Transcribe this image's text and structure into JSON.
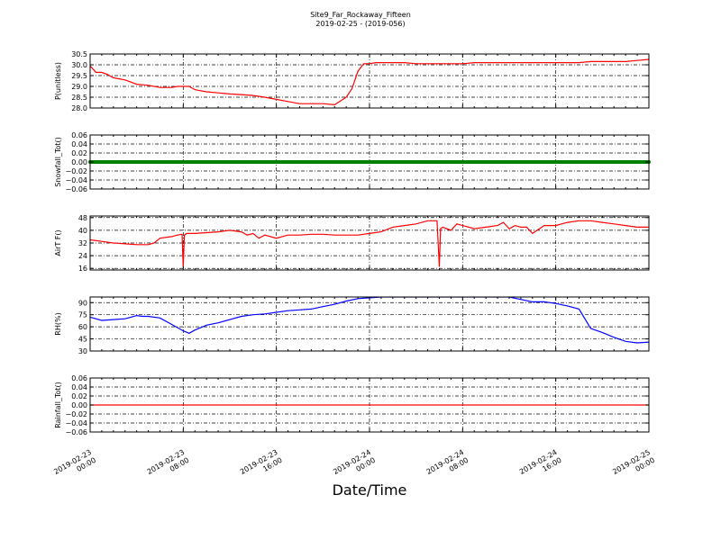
{
  "chart_data": {
    "type": "line",
    "title": "Site9_Far_Rockaway_Fifteen",
    "subtitle": "2019-02-25 - (2019-056)",
    "xlabel": "Date/Time",
    "x_ticks": [
      [
        "2019-02-23",
        "00:00"
      ],
      [
        "2019-02-23",
        "08:00"
      ],
      [
        "2019-02-23",
        "16:00"
      ],
      [
        "2019-02-24",
        "00:00"
      ],
      [
        "2019-02-24",
        "08:00"
      ],
      [
        "2019-02-24",
        "16:00"
      ],
      [
        "2019-02-25",
        "00:00"
      ]
    ],
    "xlim": [
      0,
      48
    ],
    "grid": true,
    "panels": [
      {
        "ylabel": "P(unitless)",
        "ylim": [
          28.0,
          30.5
        ],
        "yticks": [
          "28.0",
          "28.5",
          "29.0",
          "29.5",
          "30.0",
          "30.5"
        ],
        "ytick_values": [
          28.0,
          28.5,
          29.0,
          29.5,
          30.0,
          30.5
        ],
        "color": "#ff0000",
        "x": [
          0,
          0.5,
          1,
          1.5,
          2,
          2.5,
          3,
          3.5,
          4,
          5,
          6,
          7,
          7.5,
          8,
          8.5,
          9,
          9.5,
          10,
          11,
          12,
          13,
          14,
          15,
          16,
          17,
          18,
          19,
          20,
          21,
          22,
          22.5,
          23,
          23.5,
          24,
          24.5,
          25,
          26,
          27,
          28,
          29,
          30,
          31,
          32,
          33,
          34,
          35,
          36,
          37,
          38,
          39,
          40,
          41,
          42,
          43,
          44,
          45,
          46,
          47,
          48
        ],
        "y": [
          29.95,
          29.65,
          29.65,
          29.55,
          29.4,
          29.35,
          29.3,
          29.2,
          29.1,
          29.05,
          28.95,
          28.95,
          29.0,
          29.0,
          29.0,
          28.85,
          28.8,
          28.75,
          28.7,
          28.65,
          28.62,
          28.58,
          28.5,
          28.4,
          28.3,
          28.2,
          28.2,
          28.2,
          28.15,
          28.5,
          28.9,
          29.7,
          30.05,
          30.05,
          30.1,
          30.1,
          30.1,
          30.1,
          30.05,
          30.05,
          30.05,
          30.05,
          30.05,
          30.1,
          30.1,
          30.1,
          30.1,
          30.1,
          30.1,
          30.1,
          30.1,
          30.1,
          30.1,
          30.15,
          30.15,
          30.15,
          30.15,
          30.2,
          30.25
        ]
      },
      {
        "ylabel": "Snowfall_Tot()",
        "ylim": [
          -0.06,
          0.06
        ],
        "yticks": [
          "−0.06",
          "−0.04",
          "−0.02",
          "0.00",
          "0.02",
          "0.04",
          "0.06"
        ],
        "ytick_values": [
          -0.06,
          -0.04,
          -0.02,
          0.0,
          0.02,
          0.04,
          0.06
        ],
        "color": "#008000",
        "markers": true,
        "x": [
          0,
          48
        ],
        "y": [
          0.0,
          0.0
        ]
      },
      {
        "ylabel": "AirT F()",
        "ylim": [
          15,
          49
        ],
        "yticks": [
          "16",
          "24",
          "32",
          "40",
          "48"
        ],
        "ytick_values": [
          16,
          24,
          32,
          40,
          48
        ],
        "color": "#ff0000",
        "x": [
          0,
          1,
          2,
          3,
          4,
          5,
          5.5,
          6,
          7,
          7.5,
          7.9,
          8.0,
          8.1,
          8.3,
          9,
          10,
          11,
          12,
          13,
          13.5,
          14,
          14.5,
          15,
          16,
          16.5,
          17,
          18,
          19,
          20,
          21,
          22,
          23,
          24,
          25,
          26,
          27,
          28,
          29,
          29.8,
          30.0,
          30.1,
          30.3,
          31,
          31.5,
          32,
          33,
          34,
          35,
          35.5,
          36,
          36.5,
          37,
          37.5,
          38,
          39,
          40,
          40.5,
          41,
          42,
          43,
          44,
          45,
          46,
          47,
          48
        ],
        "y": [
          34,
          33,
          32,
          31.5,
          31,
          31,
          32,
          35,
          36,
          37,
          37.5,
          17,
          37,
          38,
          38,
          38.5,
          39,
          40,
          39,
          37,
          38,
          35,
          37,
          35,
          36,
          37,
          37,
          37.5,
          37.5,
          37,
          37,
          37,
          38,
          39,
          42,
          43,
          44,
          46,
          46,
          17,
          41,
          42,
          40,
          44,
          43,
          41,
          42,
          43,
          45,
          41,
          43,
          42,
          42,
          38,
          43,
          43,
          44,
          45,
          46,
          46,
          45,
          44,
          43,
          42,
          42
        ]
      },
      {
        "ylabel": "RH(%)",
        "ylim": [
          30,
          97
        ],
        "yticks": [
          "30",
          "45",
          "60",
          "75",
          "90"
        ],
        "ytick_values": [
          30,
          45,
          60,
          75,
          90
        ],
        "color": "#0000ff",
        "x": [
          0,
          1,
          2,
          3,
          3.5,
          4,
          4.5,
          5,
          6,
          7,
          8,
          8.5,
          9,
          10,
          11,
          12,
          13,
          14,
          15,
          16,
          17,
          18,
          19,
          20,
          21,
          22,
          23,
          24,
          25,
          26,
          27,
          28,
          29,
          30,
          31,
          32,
          33,
          34,
          35,
          36,
          37,
          38,
          39,
          40,
          41,
          42,
          43,
          44,
          45,
          46,
          47,
          48
        ],
        "y": [
          72,
          68,
          69,
          70,
          72,
          74,
          73,
          73,
          71,
          63,
          55,
          52,
          56,
          62,
          65,
          69,
          73,
          75,
          76,
          78,
          80,
          81,
          82,
          85,
          88,
          92,
          95,
          96,
          97,
          97,
          97,
          97,
          97,
          97,
          97,
          97,
          97,
          97,
          97,
          97,
          94,
          91,
          91,
          89,
          86,
          82,
          58,
          53,
          47,
          42,
          40,
          41
        ]
      },
      {
        "ylabel": "Rainfall_Tot()",
        "ylim": [
          -0.06,
          0.06
        ],
        "yticks": [
          "−0.06",
          "−0.04",
          "−0.02",
          "0.00",
          "0.02",
          "0.04",
          "0.06"
        ],
        "ytick_values": [
          -0.06,
          -0.04,
          -0.02,
          0.0,
          0.02,
          0.04,
          0.06
        ],
        "color": "#ff0000",
        "x": [
          0,
          48
        ],
        "y": [
          0.0,
          0.0
        ]
      }
    ]
  }
}
